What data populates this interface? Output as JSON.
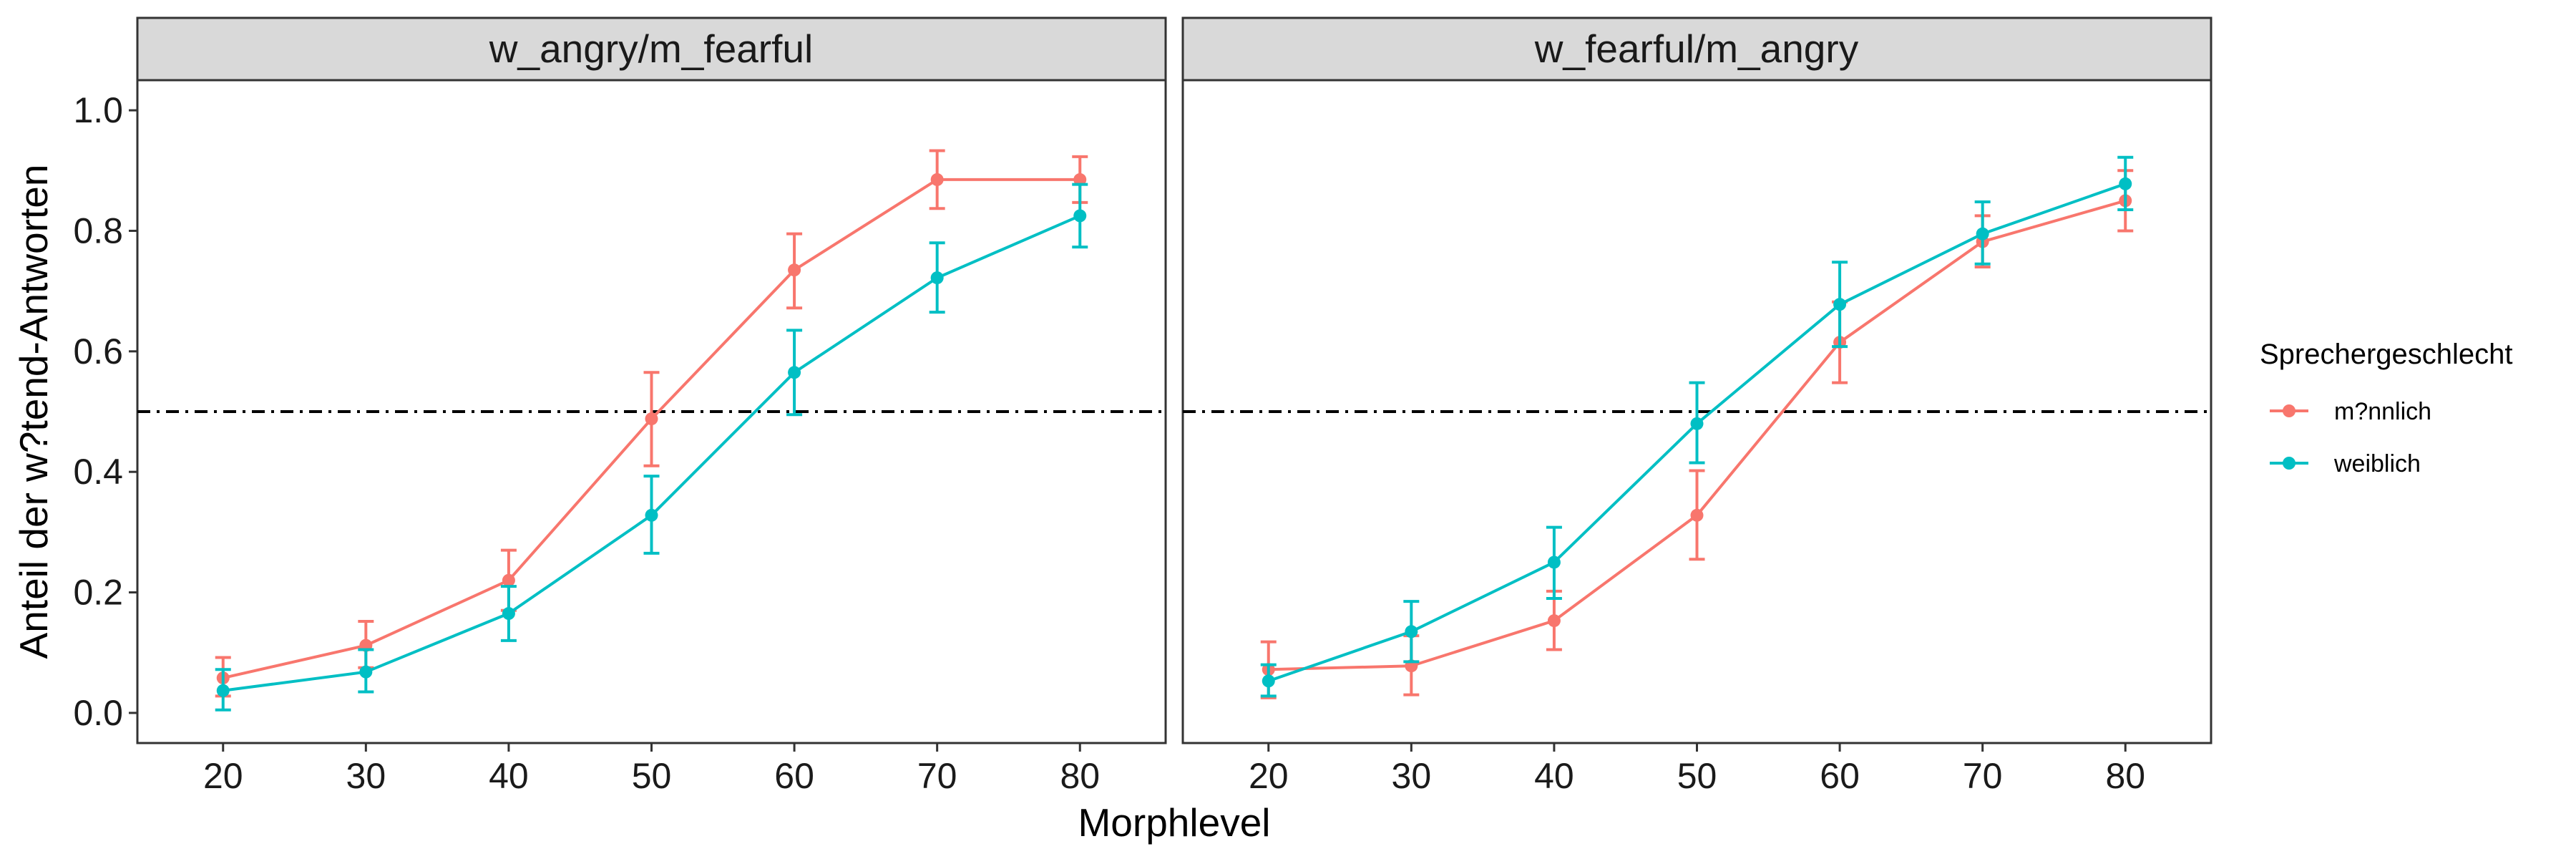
{
  "chart_data": {
    "type": "line",
    "xlabel": "Morphlevel",
    "ylabel": "Anteil der w?tend-Antworten",
    "x": [
      20,
      30,
      40,
      50,
      60,
      70,
      80
    ],
    "xlim": [
      14,
      86
    ],
    "ylim": [
      -0.05,
      1.05
    ],
    "yticks": [
      0.0,
      0.2,
      0.4,
      0.6,
      0.8,
      1.0
    ],
    "ytick_labels": [
      "0.0",
      "0.2",
      "0.4",
      "0.6",
      "0.8",
      "1.0"
    ],
    "reference_line": {
      "y": 0.5,
      "style": "dash-dot",
      "color": "#000000"
    },
    "grid": false,
    "legend": {
      "title": "Sprechergeschlecht",
      "placement": "right",
      "entries": [
        {
          "label": "m?nnlich",
          "color": "#F8766D"
        },
        {
          "label": "weiblich",
          "color": "#00BFC4"
        }
      ]
    },
    "panels": [
      {
        "strip": "w_angry/m_fearful",
        "series": [
          {
            "name": "m?nnlich",
            "color": "#F8766D",
            "values": [
              0.058,
              0.112,
              0.22,
              0.488,
              0.735,
              0.885,
              0.885
            ],
            "lower": [
              0.028,
              0.075,
              0.17,
              0.41,
              0.672,
              0.837,
              0.847
            ],
            "upper": [
              0.092,
              0.152,
              0.27,
              0.565,
              0.795,
              0.933,
              0.923
            ]
          },
          {
            "name": "weiblich",
            "color": "#00BFC4",
            "values": [
              0.037,
              0.068,
              0.165,
              0.328,
              0.565,
              0.722,
              0.825
            ],
            "lower": [
              0.005,
              0.035,
              0.12,
              0.265,
              0.495,
              0.665,
              0.773
            ],
            "upper": [
              0.072,
              0.105,
              0.21,
              0.393,
              0.635,
              0.78,
              0.877
            ]
          }
        ]
      },
      {
        "strip": "w_fearful/m_angry",
        "series": [
          {
            "name": "m?nnlich",
            "color": "#F8766D",
            "values": [
              0.072,
              0.078,
              0.153,
              0.328,
              0.615,
              0.782,
              0.85
            ],
            "lower": [
              0.025,
              0.03,
              0.105,
              0.255,
              0.548,
              0.74,
              0.8
            ],
            "upper": [
              0.118,
              0.128,
              0.202,
              0.402,
              0.682,
              0.825,
              0.9
            ]
          },
          {
            "name": "weiblich",
            "color": "#00BFC4",
            "values": [
              0.053,
              0.135,
              0.25,
              0.48,
              0.678,
              0.795,
              0.878
            ],
            "lower": [
              0.028,
              0.085,
              0.19,
              0.415,
              0.608,
              0.745,
              0.835
            ],
            "upper": [
              0.08,
              0.185,
              0.308,
              0.548,
              0.748,
              0.848,
              0.922
            ]
          }
        ]
      }
    ]
  }
}
